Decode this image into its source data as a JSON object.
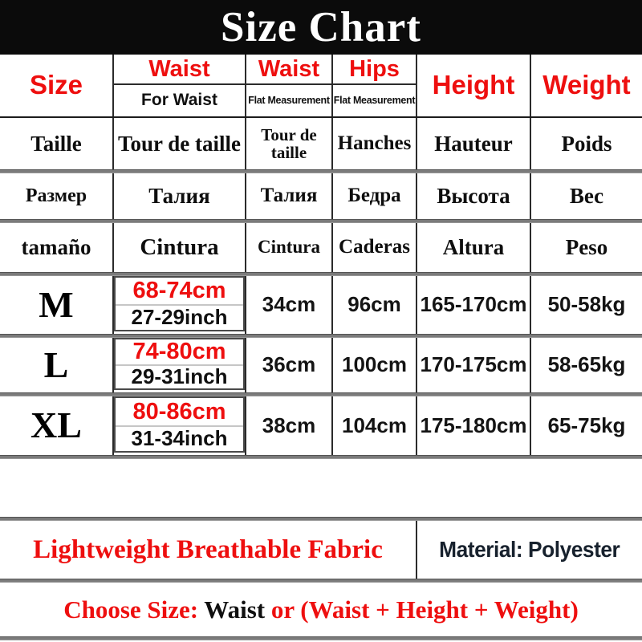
{
  "banner": {
    "title": "Size Chart"
  },
  "colors": {
    "accent_red": "#ee0f0f",
    "banner_black": "#0b0b0b",
    "material_navy": "#17212d",
    "separator_gray": "#7b7b7b"
  },
  "table": {
    "header": {
      "size": "Size",
      "waist_fit": {
        "label": "Waist",
        "sub": "For Waist"
      },
      "waist_flat": {
        "label": "Waist",
        "sub": "Flat Measurement"
      },
      "hips": {
        "label": "Hips",
        "sub": "Flat Measurement"
      },
      "height": "Height",
      "weight": "Weight"
    },
    "lang_rows": [
      {
        "size": "Taille",
        "waist_fit": "Tour de taille",
        "waist_flat": "Tour de taille",
        "hips": "Hanches",
        "height": "Hauteur",
        "weight": "Poids"
      },
      {
        "size": "Размер",
        "waist_fit": "Талия",
        "waist_flat": "Талия",
        "hips": "Бедра",
        "height": "Высота",
        "weight": "Вес"
      },
      {
        "size": "tamaño",
        "waist_fit": "Cintura",
        "waist_flat": "Cintura",
        "hips": "Caderas",
        "height": "Altura",
        "weight": "Peso"
      }
    ],
    "size_rows": [
      {
        "label": "M",
        "waist_cm": "68-74cm",
        "waist_inch": "27-29inch",
        "waist_flat": "34cm",
        "hips_flat": "96cm",
        "height": "165-170cm",
        "weight": "50-58kg"
      },
      {
        "label": "L",
        "waist_cm": "74-80cm",
        "waist_inch": "29-31inch",
        "waist_flat": "36cm",
        "hips_flat": "100cm",
        "height": "170-175cm",
        "weight": "58-65kg"
      },
      {
        "label": "XL",
        "waist_cm": "80-86cm",
        "waist_inch": "31-34inch",
        "waist_flat": "38cm",
        "hips_flat": "104cm",
        "height": "175-180cm",
        "weight": "65-75kg"
      }
    ]
  },
  "footer": {
    "fabric_label": "Lightweight Breathable Fabric",
    "material_label": "Material: Polyester",
    "choose": {
      "prefix": "Choose Size: ",
      "emphasis": "Waist",
      "suffix": " or (Waist + Height + Weight)"
    }
  },
  "chart_data": {
    "type": "table",
    "title": "Size Chart",
    "columns": [
      "Size",
      "Waist (For Waist)",
      "Waist (Flat Measurement)",
      "Hips (Flat Measurement)",
      "Height",
      "Weight"
    ],
    "rows": [
      [
        "M",
        "68-74cm / 27-29inch",
        "34cm",
        "96cm",
        "165-170cm",
        "50-58kg"
      ],
      [
        "L",
        "74-80cm / 29-31inch",
        "36cm",
        "100cm",
        "170-175cm",
        "58-65kg"
      ],
      [
        "XL",
        "80-86cm / 31-34inch",
        "38cm",
        "104cm",
        "175-180cm",
        "65-75kg"
      ]
    ]
  }
}
